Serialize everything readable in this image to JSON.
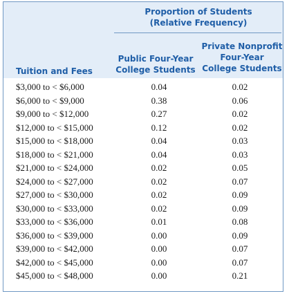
{
  "header": {
    "proportion_line1": "Proportion of Students",
    "proportion_line2": "(Relative Frequency)",
    "public_line1": "Public Four-Year",
    "public_line2": "College Students",
    "private_line1": "Private Nonprofit",
    "private_line2": "Four-Year",
    "private_line3": "College Students",
    "tuition": "Tuition and Fees"
  },
  "rows": [
    {
      "range": "$3,000 to < $6,000",
      "public": "0.04",
      "private": "0.02"
    },
    {
      "range": "$6,000 to < $9,000",
      "public": "0.38",
      "private": "0.06"
    },
    {
      "range": "$9,000 to < $12,000",
      "public": "0.27",
      "private": "0.02"
    },
    {
      "range": "$12,000 to < $15,000",
      "public": "0.12",
      "private": "0.02"
    },
    {
      "range": "$15,000 to < $18,000",
      "public": "0.04",
      "private": "0.03"
    },
    {
      "range": "$18,000 to < $21,000",
      "public": "0.04",
      "private": "0.03"
    },
    {
      "range": "$21,000 to < $24,000",
      "public": "0.02",
      "private": "0.05"
    },
    {
      "range": "$24,000 to < $27,000",
      "public": "0.02",
      "private": "0.07"
    },
    {
      "range": "$27,000 to < $30,000",
      "public": "0.02",
      "private": "0.09"
    },
    {
      "range": "$30,000 to < $33,000",
      "public": "0.02",
      "private": "0.09"
    },
    {
      "range": "$33,000 to < $36,000",
      "public": "0.01",
      "private": "0.08"
    },
    {
      "range": "$36,000 to < $39,000",
      "public": "0.00",
      "private": "0.09"
    },
    {
      "range": "$39,000 to < $42,000",
      "public": "0.00",
      "private": "0.07"
    },
    {
      "range": "$42,000 to < $45,000",
      "public": "0.00",
      "private": "0.07"
    },
    {
      "range": "$45,000 to < $48,000",
      "public": "0.00",
      "private": "0.21"
    }
  ]
}
